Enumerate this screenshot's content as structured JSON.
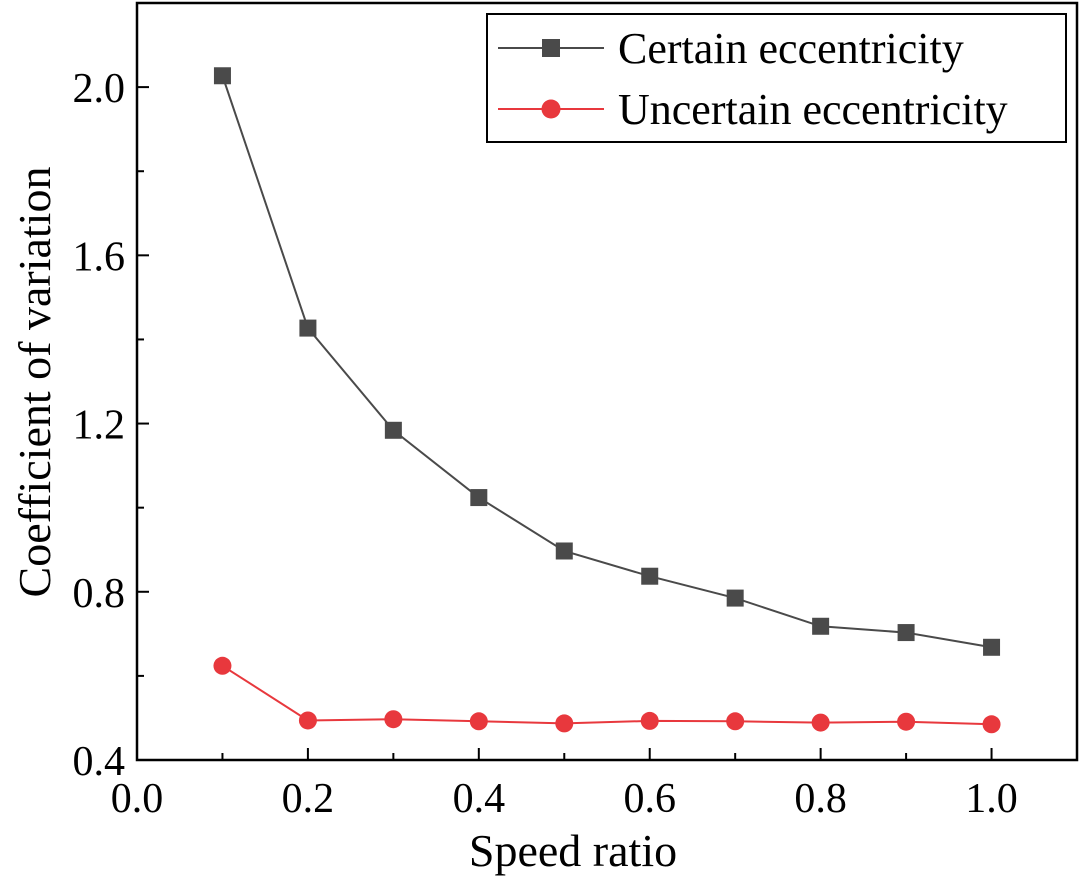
{
  "chart_data": {
    "type": "line",
    "xlabel": "Speed ratio",
    "ylabel": "Coefficient of variation",
    "xlim": [
      0.0,
      1.1
    ],
    "ylim": [
      0.4,
      2.2
    ],
    "x_ticks": [
      "0.0",
      "0.2",
      "0.4",
      "0.6",
      "0.8",
      "1.0"
    ],
    "y_ticks": [
      "0.4",
      "0.8",
      "1.2",
      "1.6",
      "2.0"
    ],
    "x": [
      0.1,
      0.2,
      0.3,
      0.4,
      0.5,
      0.6,
      0.7,
      0.8,
      0.9,
      1.0
    ],
    "legend_position": "top-right",
    "grid": false,
    "series": [
      {
        "name": "Certain eccentricity",
        "color": "#4a4a4a",
        "marker": "square",
        "values": [
          2.027,
          1.427,
          1.184,
          1.024,
          0.897,
          0.837,
          0.785,
          0.718,
          0.703,
          0.668
        ]
      },
      {
        "name": "Uncertain eccentricity",
        "color": "#e8383d",
        "marker": "circle",
        "values": [
          0.624,
          0.494,
          0.497,
          0.492,
          0.487,
          0.493,
          0.492,
          0.489,
          0.491,
          0.485
        ]
      }
    ]
  }
}
